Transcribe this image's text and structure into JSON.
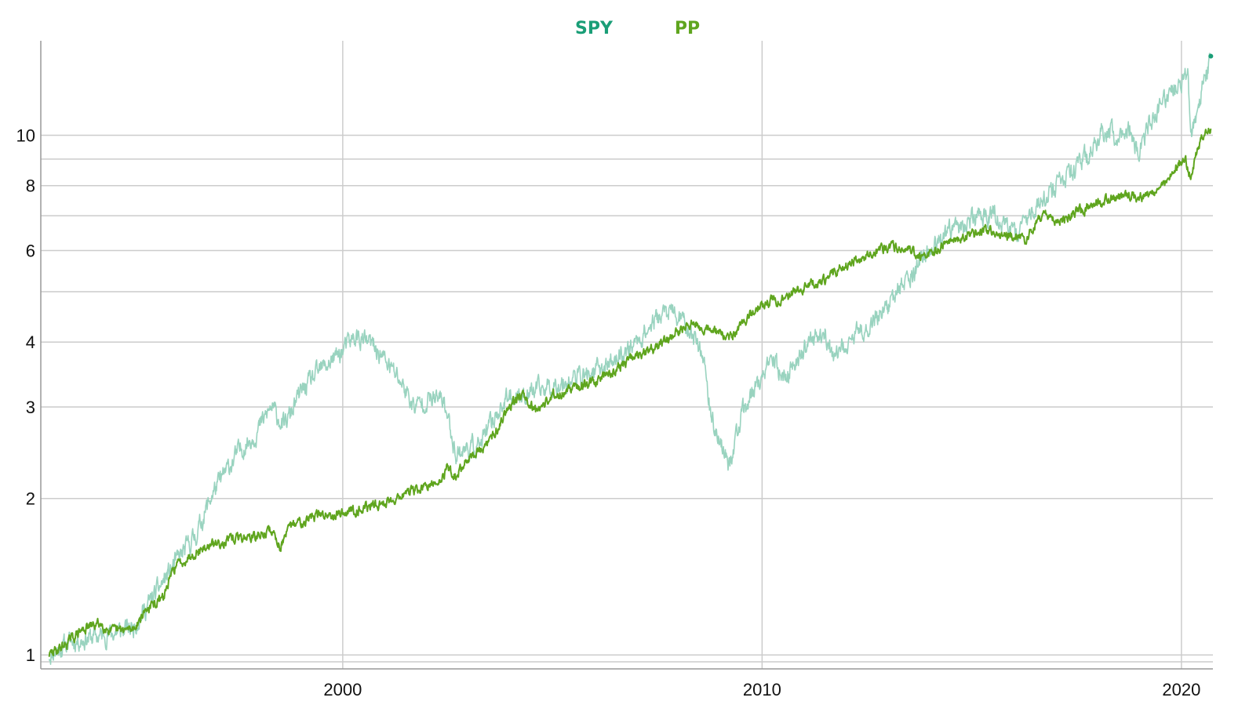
{
  "chart_data": {
    "type": "line",
    "title": "",
    "xlabel": "",
    "ylabel": "",
    "y_scale": "log",
    "xlim": [
      1992.8,
      2020.75
    ],
    "ylim": [
      0.94,
      15.2
    ],
    "grid": true,
    "legend_placement": "top-center",
    "x_ticks": [
      {
        "value": 2000,
        "label": "2000"
      },
      {
        "value": 2010,
        "label": "2010"
      },
      {
        "value": 2020,
        "label": "2020"
      }
    ],
    "y_ticks": [
      {
        "value": 1,
        "label": "1"
      },
      {
        "value": 2,
        "label": "2"
      },
      {
        "value": 3,
        "label": "3"
      },
      {
        "value": 4,
        "label": "4"
      },
      {
        "value": 6,
        "label": "6"
      },
      {
        "value": 8,
        "label": "8"
      },
      {
        "value": 10,
        "label": "10"
      }
    ],
    "y_minor_gridlines": [
      0.97,
      5,
      7,
      9
    ],
    "series": [
      {
        "name": "SPY",
        "legend_color": "#1a9e77",
        "color": "#99d3bf",
        "points": [
          [
            1993.0,
            1.0
          ],
          [
            1993.5,
            1.06
          ],
          [
            1994.0,
            1.08
          ],
          [
            1994.5,
            1.1
          ],
          [
            1995.0,
            1.13
          ],
          [
            1995.5,
            1.3
          ],
          [
            1996.0,
            1.5
          ],
          [
            1996.5,
            1.7
          ],
          [
            1996.9,
            2.05
          ],
          [
            1997.5,
            2.45
          ],
          [
            1997.9,
            2.65
          ],
          [
            1998.3,
            3.0
          ],
          [
            1998.6,
            2.75
          ],
          [
            1999.0,
            3.2
          ],
          [
            1999.5,
            3.55
          ],
          [
            2000.0,
            3.85
          ],
          [
            2000.3,
            4.1
          ],
          [
            2000.7,
            3.95
          ],
          [
            2001.0,
            3.7
          ],
          [
            2001.4,
            3.35
          ],
          [
            2001.7,
            3.0
          ],
          [
            2002.0,
            3.1
          ],
          [
            2002.4,
            3.1
          ],
          [
            2002.7,
            2.45
          ],
          [
            2003.0,
            2.5
          ],
          [
            2003.3,
            2.55
          ],
          [
            2003.7,
            2.95
          ],
          [
            2004.0,
            3.15
          ],
          [
            2004.5,
            3.2
          ],
          [
            2005.0,
            3.3
          ],
          [
            2005.5,
            3.4
          ],
          [
            2006.0,
            3.5
          ],
          [
            2006.5,
            3.7
          ],
          [
            2007.0,
            4.0
          ],
          [
            2007.5,
            4.45
          ],
          [
            2007.8,
            4.6
          ],
          [
            2008.0,
            4.45
          ],
          [
            2008.3,
            4.2
          ],
          [
            2008.6,
            3.8
          ],
          [
            2008.8,
            2.8
          ],
          [
            2009.0,
            2.6
          ],
          [
            2009.2,
            2.3
          ],
          [
            2009.5,
            2.85
          ],
          [
            2009.8,
            3.25
          ],
          [
            2010.0,
            3.4
          ],
          [
            2010.3,
            3.7
          ],
          [
            2010.5,
            3.35
          ],
          [
            2010.8,
            3.7
          ],
          [
            2011.3,
            4.1
          ],
          [
            2011.5,
            4.2
          ],
          [
            2011.7,
            3.65
          ],
          [
            2012.0,
            3.95
          ],
          [
            2012.5,
            4.3
          ],
          [
            2013.0,
            4.7
          ],
          [
            2013.5,
            5.35
          ],
          [
            2014.0,
            6.0
          ],
          [
            2014.5,
            6.5
          ],
          [
            2015.0,
            6.9
          ],
          [
            2015.5,
            7.1
          ],
          [
            2015.8,
            6.6
          ],
          [
            2016.1,
            6.5
          ],
          [
            2016.5,
            7.3
          ],
          [
            2017.0,
            7.9
          ],
          [
            2017.5,
            8.6
          ],
          [
            2018.0,
            9.7
          ],
          [
            2018.1,
            10.2
          ],
          [
            2018.5,
            10.0
          ],
          [
            2018.8,
            10.3
          ],
          [
            2018.97,
            9.0
          ],
          [
            2019.2,
            10.4
          ],
          [
            2019.6,
            11.6
          ],
          [
            2020.0,
            12.8
          ],
          [
            2020.15,
            13.5
          ],
          [
            2020.22,
            9.6
          ],
          [
            2020.45,
            11.8
          ],
          [
            2020.7,
            14.2
          ]
        ]
      },
      {
        "name": "PP",
        "legend_color": "#5fa51e",
        "color": "#5fa51e",
        "points": [
          [
            1993.0,
            1.0
          ],
          [
            1993.4,
            1.05
          ],
          [
            1993.8,
            1.12
          ],
          [
            1994.2,
            1.15
          ],
          [
            1994.5,
            1.11
          ],
          [
            1995.0,
            1.12
          ],
          [
            1995.3,
            1.22
          ],
          [
            1995.7,
            1.28
          ],
          [
            1996.0,
            1.48
          ],
          [
            1996.5,
            1.58
          ],
          [
            1997.0,
            1.64
          ],
          [
            1997.5,
            1.68
          ],
          [
            1998.0,
            1.69
          ],
          [
            1998.3,
            1.74
          ],
          [
            1998.5,
            1.62
          ],
          [
            1998.8,
            1.78
          ],
          [
            1999.3,
            1.85
          ],
          [
            2000.0,
            1.88
          ],
          [
            2000.5,
            1.92
          ],
          [
            2001.0,
            1.96
          ],
          [
            2001.5,
            2.05
          ],
          [
            2002.0,
            2.1
          ],
          [
            2002.3,
            2.15
          ],
          [
            2002.5,
            2.3
          ],
          [
            2002.7,
            2.2
          ],
          [
            2003.0,
            2.4
          ],
          [
            2003.4,
            2.5
          ],
          [
            2003.7,
            2.75
          ],
          [
            2004.0,
            3.05
          ],
          [
            2004.3,
            3.2
          ],
          [
            2004.6,
            2.95
          ],
          [
            2005.0,
            3.15
          ],
          [
            2005.5,
            3.25
          ],
          [
            2006.0,
            3.35
          ],
          [
            2006.5,
            3.55
          ],
          [
            2007.0,
            3.75
          ],
          [
            2007.5,
            3.9
          ],
          [
            2008.0,
            4.2
          ],
          [
            2008.3,
            4.35
          ],
          [
            2008.6,
            4.25
          ],
          [
            2008.9,
            4.2
          ],
          [
            2009.2,
            4.05
          ],
          [
            2009.5,
            4.3
          ],
          [
            2010.0,
            4.75
          ],
          [
            2010.5,
            4.85
          ],
          [
            2011.0,
            5.1
          ],
          [
            2011.5,
            5.25
          ],
          [
            2012.0,
            5.65
          ],
          [
            2012.5,
            5.85
          ],
          [
            2013.0,
            6.1
          ],
          [
            2013.5,
            6.05
          ],
          [
            2013.8,
            5.85
          ],
          [
            2014.2,
            6.05
          ],
          [
            2014.8,
            6.35
          ],
          [
            2015.3,
            6.55
          ],
          [
            2015.8,
            6.4
          ],
          [
            2016.3,
            6.3
          ],
          [
            2016.7,
            7.15
          ],
          [
            2017.0,
            6.75
          ],
          [
            2017.5,
            7.1
          ],
          [
            2018.0,
            7.4
          ],
          [
            2018.5,
            7.6
          ],
          [
            2019.0,
            7.6
          ],
          [
            2019.5,
            7.8
          ],
          [
            2019.8,
            8.6
          ],
          [
            2020.1,
            8.9
          ],
          [
            2020.22,
            8.3
          ],
          [
            2020.4,
            9.6
          ],
          [
            2020.7,
            10.3
          ]
        ]
      }
    ]
  }
}
